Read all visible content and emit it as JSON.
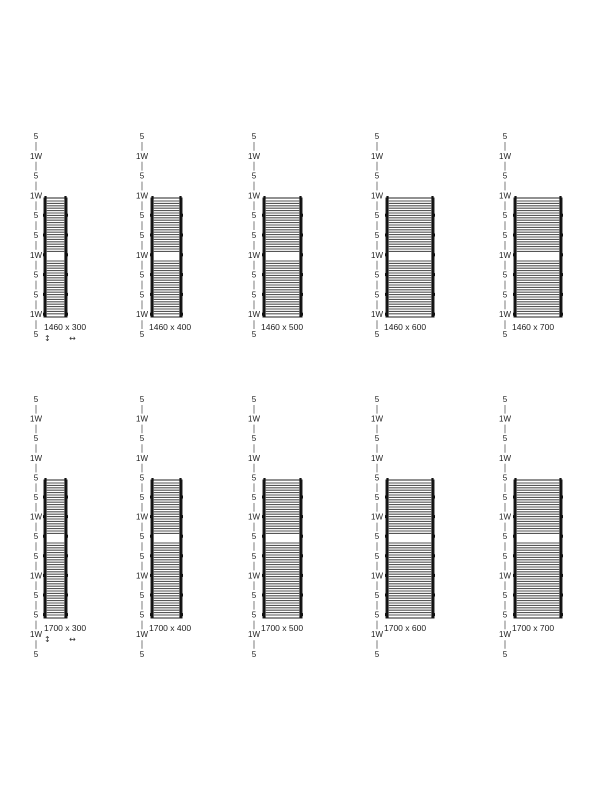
{
  "rows": [
    {
      "scale": [
        "5",
        "1W",
        "5",
        "1W",
        "5",
        "5",
        "1W",
        "5",
        "5",
        "1W",
        "5"
      ],
      "models": [
        {
          "label": "1460 x 300"
        },
        {
          "label": "1460 x 400"
        },
        {
          "label": "1460 x 500"
        },
        {
          "label": "1460 x 600"
        },
        {
          "label": "1460 x 700"
        }
      ],
      "legend": {
        "height_symbol": "↕",
        "width_symbol": "↔"
      }
    },
    {
      "scale": [
        "5",
        "1W",
        "5",
        "1W",
        "5",
        "5",
        "1W",
        "5",
        "5",
        "1W",
        "5",
        "5",
        "1W",
        "5"
      ],
      "models": [
        {
          "label": "1700 x 300"
        },
        {
          "label": "1700 x 400"
        },
        {
          "label": "1700 x 500"
        },
        {
          "label": "1700 x 600"
        },
        {
          "label": "1700 x 700"
        }
      ],
      "legend": {
        "height_symbol": "↕",
        "width_symbol": "↔"
      }
    }
  ]
}
